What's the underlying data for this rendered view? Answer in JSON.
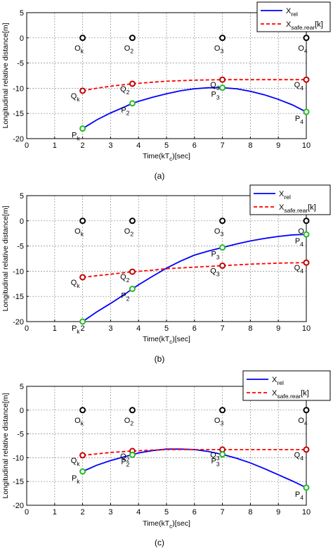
{
  "colors": {
    "rel": "#0000ff",
    "safe": "#ff0000",
    "o_marker": "#000000",
    "q_marker": "#c00000",
    "p_marker": "#22bb22",
    "grid": "#888888",
    "axis": "#000000"
  },
  "chart_data": [
    {
      "panel_label": "(a)",
      "type": "line",
      "xlabel": "Time(kT_c)[sec]",
      "ylabel": "Longitudinal relative distance[m]",
      "xlim": [
        0,
        10
      ],
      "ylim": [
        -20,
        5
      ],
      "xticks": [
        0,
        1,
        2,
        3,
        4,
        5,
        6,
        7,
        8,
        9,
        10
      ],
      "yticks": [
        5,
        0,
        -5,
        -10,
        -15,
        -20
      ],
      "grid": true,
      "legend_placement": "top-right",
      "series": [
        {
          "name": "X_rel",
          "style": "solid",
          "color": "#0000ff",
          "x": [
            2,
            2.5,
            3,
            3.5,
            3.78,
            4,
            4.5,
            5,
            5.5,
            6,
            6.5,
            7,
            7.5,
            8,
            8.5,
            9,
            9.5,
            10
          ],
          "y": [
            -18,
            -16.3,
            -14.9,
            -13.7,
            -13,
            -12.6,
            -11.8,
            -11.1,
            -10.5,
            -10.1,
            -9.9,
            -9.9,
            -10.1,
            -10.6,
            -11.3,
            -12.2,
            -13.3,
            -14.7
          ]
        },
        {
          "name": "X_safe.rear[k]",
          "style": "dashed",
          "color": "#ff0000",
          "x": [
            2,
            2.5,
            3,
            3.78,
            4.5,
            5,
            6,
            7,
            8,
            9,
            10
          ],
          "y": [
            -10.5,
            -10,
            -9.6,
            -9.1,
            -8.8,
            -8.6,
            -8.4,
            -8.3,
            -8.3,
            -8.3,
            -8.3
          ]
        }
      ],
      "points": [
        {
          "label": "O_k",
          "kind": "O",
          "x": 2,
          "y": 0
        },
        {
          "label": "O_2",
          "kind": "O",
          "x": 3.78,
          "y": 0
        },
        {
          "label": "O_3",
          "kind": "O",
          "x": 7,
          "y": 0
        },
        {
          "label": "O_4",
          "kind": "O",
          "x": 10,
          "y": 0
        },
        {
          "label": "Q_k",
          "kind": "Q",
          "x": 2,
          "y": -10.5
        },
        {
          "label": "Q_2",
          "kind": "Q",
          "x": 3.78,
          "y": -9.1
        },
        {
          "label": "Q_3",
          "kind": "Q",
          "x": 7,
          "y": -8.3
        },
        {
          "label": "Q_4",
          "kind": "Q",
          "x": 10,
          "y": -8.3
        },
        {
          "label": "P_k",
          "kind": "P",
          "x": 2,
          "y": -18
        },
        {
          "label": "P_2",
          "kind": "P",
          "x": 3.78,
          "y": -13
        },
        {
          "label": "P_3",
          "kind": "P",
          "x": 7,
          "y": -9.9
        },
        {
          "label": "P_4",
          "kind": "P",
          "x": 10,
          "y": -14.7
        }
      ]
    },
    {
      "panel_label": "(b)",
      "type": "line",
      "xlabel": "Time(kT_c)[sec]",
      "ylabel": "Longitudinal relative distance[m]",
      "xlim": [
        0,
        10
      ],
      "ylim": [
        -20,
        5
      ],
      "xticks": [
        0,
        1,
        2,
        3,
        4,
        5,
        6,
        7,
        8,
        9,
        10
      ],
      "yticks": [
        5,
        0,
        -5,
        -10,
        -15,
        -20
      ],
      "grid": true,
      "legend_placement": "top-right",
      "series": [
        {
          "name": "X_rel",
          "style": "solid",
          "color": "#0000ff",
          "x": [
            2,
            2.5,
            3,
            3.5,
            3.78,
            4,
            4.5,
            5,
            5.5,
            6,
            6.5,
            7,
            7.5,
            8,
            8.5,
            9,
            9.5,
            10
          ],
          "y": [
            -20,
            -18.1,
            -16.4,
            -14.6,
            -13.5,
            -12.7,
            -11,
            -9.4,
            -8,
            -6.8,
            -6,
            -5.3,
            -4.6,
            -4,
            -3.5,
            -3.1,
            -2.8,
            -2.7
          ]
        },
        {
          "name": "X_safe.rear[k]",
          "style": "dashed",
          "color": "#ff0000",
          "x": [
            2,
            2.5,
            3,
            3.78,
            4.5,
            5,
            6,
            7,
            8,
            9,
            10
          ],
          "y": [
            -11.2,
            -10.9,
            -10.6,
            -10.1,
            -9.8,
            -9.5,
            -9.2,
            -8.9,
            -8.6,
            -8.4,
            -8.3
          ]
        }
      ],
      "points": [
        {
          "label": "O_k",
          "kind": "O",
          "x": 2,
          "y": 0
        },
        {
          "label": "O_2",
          "kind": "O",
          "x": 3.78,
          "y": 0
        },
        {
          "label": "O_3",
          "kind": "O",
          "x": 7,
          "y": 0
        },
        {
          "label": "O_4",
          "kind": "O",
          "x": 10,
          "y": 0
        },
        {
          "label": "Q_k",
          "kind": "Q",
          "x": 2,
          "y": -11.2
        },
        {
          "label": "Q_2",
          "kind": "Q",
          "x": 3.78,
          "y": -10.1
        },
        {
          "label": "Q_3",
          "kind": "Q",
          "x": 7,
          "y": -8.9
        },
        {
          "label": "Q_4",
          "kind": "Q",
          "x": 10,
          "y": -8.3
        },
        {
          "label": "P_k",
          "kind": "P",
          "x": 2,
          "y": -20
        },
        {
          "label": "P_2",
          "kind": "P",
          "x": 3.78,
          "y": -13.5
        },
        {
          "label": "P_3",
          "kind": "P",
          "x": 7,
          "y": -5.3
        },
        {
          "label": "P_4",
          "kind": "P",
          "x": 10,
          "y": -2.7
        }
      ]
    },
    {
      "panel_label": "(c)",
      "type": "line",
      "xlabel": "Time(kT_c)[sec]",
      "ylabel": "Longitudinal relative distance[m]",
      "xlim": [
        0,
        10
      ],
      "ylim": [
        -20,
        5
      ],
      "xticks": [
        0,
        1,
        2,
        3,
        4,
        5,
        6,
        7,
        8,
        9,
        10
      ],
      "yticks": [
        5,
        0,
        -5,
        -10,
        -15,
        -20
      ],
      "grid": true,
      "legend_placement": "top-right",
      "series": [
        {
          "name": "X_rel",
          "style": "solid",
          "color": "#0000ff",
          "x": [
            2,
            2.5,
            3,
            3.5,
            3.78,
            4,
            4.5,
            5,
            5.5,
            6,
            6.5,
            7,
            7.5,
            8,
            8.5,
            9,
            9.5,
            10
          ],
          "y": [
            -12.9,
            -11.6,
            -10.6,
            -9.8,
            -9.4,
            -9,
            -8.5,
            -8.2,
            -8.2,
            -8.3,
            -8.7,
            -9.3,
            -10.1,
            -11.1,
            -12.3,
            -13.6,
            -14.9,
            -16.3
          ]
        },
        {
          "name": "X_safe.rear[k]",
          "style": "dashed",
          "color": "#ff0000",
          "x": [
            2,
            2.5,
            3,
            3.78,
            4.5,
            5,
            6,
            7,
            8,
            9,
            10
          ],
          "y": [
            -9.5,
            -9.2,
            -8.9,
            -8.6,
            -8.4,
            -8.3,
            -8.3,
            -8.3,
            -8.3,
            -8.3,
            -8.3
          ]
        }
      ],
      "points": [
        {
          "label": "O_k",
          "kind": "O",
          "x": 2,
          "y": 0
        },
        {
          "label": "O_2",
          "kind": "O",
          "x": 3.78,
          "y": 0
        },
        {
          "label": "O_3",
          "kind": "O",
          "x": 7,
          "y": 0
        },
        {
          "label": "O_4",
          "kind": "O",
          "x": 10,
          "y": 0
        },
        {
          "label": "Q_k",
          "kind": "Q",
          "x": 2,
          "y": -9.5
        },
        {
          "label": "Q_2",
          "kind": "Q",
          "x": 3.78,
          "y": -8.6
        },
        {
          "label": "Q_3",
          "kind": "Q",
          "x": 7,
          "y": -8.3
        },
        {
          "label": "Q_4",
          "kind": "Q",
          "x": 10,
          "y": -8.3
        },
        {
          "label": "P_k",
          "kind": "P",
          "x": 2,
          "y": -12.9
        },
        {
          "label": "P_2",
          "kind": "P",
          "x": 3.78,
          "y": -9.4
        },
        {
          "label": "P_3",
          "kind": "P",
          "x": 7,
          "y": -9.3
        },
        {
          "label": "P_4",
          "kind": "P",
          "x": 10,
          "y": -16.3
        }
      ]
    }
  ]
}
